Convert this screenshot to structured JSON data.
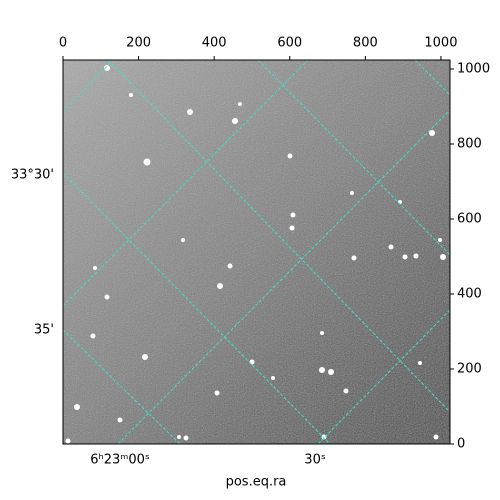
{
  "chart_data": {
    "type": "image",
    "xlabel": "pos.eq.ra",
    "xlim": [
      0,
      1024
    ],
    "ylim": [
      0,
      1024
    ],
    "xticks": [
      0,
      200,
      400,
      600,
      800,
      1000
    ],
    "yticks": [
      0,
      200,
      400,
      600,
      800,
      1000
    ],
    "grid": true,
    "grid_color": "#40e0d0",
    "ra_labels": [
      "6ʰ23ᵐ00ˢ",
      "30ˢ"
    ],
    "dec_labels": [
      "33°30'",
      "35'"
    ]
  }
}
